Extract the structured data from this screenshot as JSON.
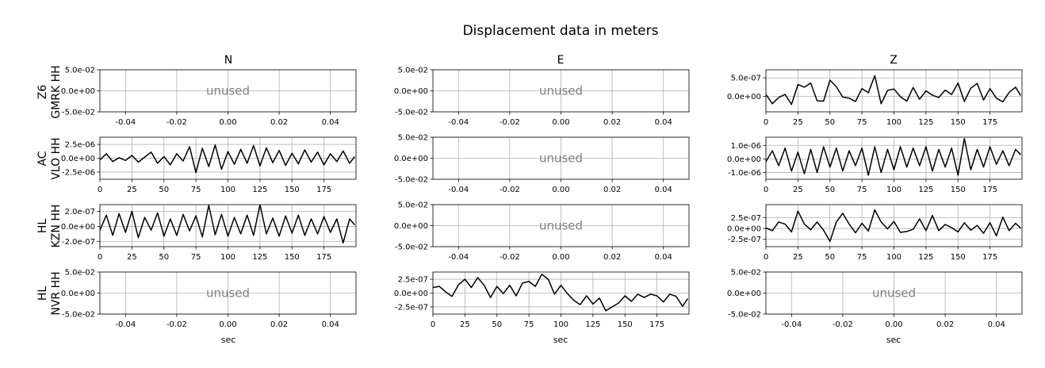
{
  "figure": {
    "title": "Displacement data in meters",
    "columns": [
      "N",
      "E",
      "Z"
    ],
    "xlabel": "sec",
    "unused_label": "unused"
  },
  "chart_data": [
    {
      "row": 0,
      "col": 0,
      "station": "Z6 GMRK HH",
      "component": "N",
      "type": "line",
      "unused": true,
      "xlim": [
        -0.05,
        0.05
      ],
      "xticks": [
        "-0.04",
        "-0.02",
        "0.00",
        "0.02",
        "0.04"
      ],
      "ylim": [
        -0.05,
        0.05
      ],
      "yticks": [
        "5.0e-02",
        "0.0e+00",
        "-5.0e-02"
      ],
      "grid": true
    },
    {
      "row": 0,
      "col": 1,
      "station": "Z6 GMRK HH",
      "component": "E",
      "type": "line",
      "unused": true,
      "xlim": [
        -0.05,
        0.05
      ],
      "xticks": [
        "-0.04",
        "-0.02",
        "0.00",
        "0.02",
        "0.04"
      ],
      "ylim": [
        -0.05,
        0.05
      ],
      "yticks": [
        "5.0e-02",
        "0.0e+00",
        "-5.0e-02"
      ],
      "grid": true
    },
    {
      "row": 0,
      "col": 2,
      "station": "Z6 GMRK HH",
      "component": "Z",
      "type": "line",
      "unused": false,
      "xlim": [
        0,
        200
      ],
      "xticks": [
        "0",
        "25",
        "50",
        "75",
        "100",
        "125",
        "150",
        "175"
      ],
      "ylim": [
        -4.2e-07,
        7.2e-07
      ],
      "yticks": [
        "5.0e-07",
        "0.0e+00"
      ],
      "grid": true,
      "x": [
        0,
        5,
        10,
        15,
        20,
        25,
        30,
        35,
        40,
        45,
        50,
        55,
        60,
        65,
        70,
        75,
        80,
        85,
        90,
        95,
        100,
        105,
        110,
        115,
        120,
        125,
        130,
        135,
        140,
        145,
        150,
        155,
        160,
        165,
        170,
        175,
        180,
        185,
        190,
        195,
        199
      ],
      "y": [
        5e-08,
        -2e-07,
        -3e-08,
        5e-08,
        -2.2e-07,
        3.2e-07,
        2.5e-07,
        3.6e-07,
        -1.2e-07,
        -1.3e-07,
        4.4e-07,
        2.6e-07,
        -2e-08,
        -5e-08,
        -1.4e-07,
        2.1e-07,
        1e-07,
        5.6e-07,
        -2e-07,
        1.6e-07,
        2e-07,
        -1e-08,
        -1.3e-07,
        2.4e-07,
        -8e-08,
        1.5e-07,
        3e-08,
        -3e-08,
        1.7e-07,
        5e-08,
        3.6e-07,
        -1.4e-07,
        2.2e-07,
        3.5e-07,
        -1e-07,
        2.1e-07,
        -5e-08,
        -1.5e-07,
        1.1e-07,
        2.5e-07,
        2e-08
      ]
    },
    {
      "row": 1,
      "col": 0,
      "station": "AC VLO HH",
      "component": "N",
      "type": "line",
      "unused": false,
      "xlim": [
        0,
        200
      ],
      "xticks": [
        "0",
        "25",
        "50",
        "75",
        "100",
        "125",
        "150",
        "175"
      ],
      "ylim": [
        -3.8e-06,
        3.8e-06
      ],
      "yticks": [
        "2.5e-06",
        "0.0e+00",
        "-2.5e-06"
      ],
      "grid": true,
      "x": [
        0,
        5,
        10,
        15,
        20,
        25,
        30,
        35,
        40,
        45,
        50,
        55,
        60,
        65,
        70,
        75,
        80,
        85,
        90,
        95,
        100,
        105,
        110,
        115,
        120,
        125,
        130,
        135,
        140,
        145,
        150,
        155,
        160,
        165,
        170,
        175,
        180,
        185,
        190,
        195,
        199
      ],
      "y": [
        -3e-07,
        8e-07,
        -6e-07,
        1e-07,
        -4e-07,
        5e-07,
        -7e-07,
        2e-07,
        1.1e-06,
        -9e-07,
        3e-07,
        -1.2e-06,
        8e-07,
        -5e-07,
        2.1e-06,
        -2.6e-06,
        1.8e-06,
        -1.5e-06,
        2.4e-06,
        -2e-06,
        1.2e-06,
        -1.1e-06,
        1.6e-06,
        -9e-07,
        2.3e-06,
        -1.4e-06,
        1.9e-06,
        -8e-07,
        1.4e-06,
        -1.3e-06,
        9e-07,
        -1e-06,
        1.5e-06,
        -7e-07,
        1.1e-06,
        -1.2e-06,
        8e-07,
        -6e-07,
        1.3e-06,
        -9e-07,
        3e-07
      ]
    },
    {
      "row": 1,
      "col": 1,
      "station": "AC VLO HH",
      "component": "E",
      "type": "line",
      "unused": true,
      "xlim": [
        -0.05,
        0.05
      ],
      "xticks": [
        "-0.04",
        "-0.02",
        "0.00",
        "0.02",
        "0.04"
      ],
      "ylim": [
        -0.05,
        0.05
      ],
      "yticks": [
        "5.0e-02",
        "0.0e+00",
        "-5.0e-02"
      ],
      "grid": true
    },
    {
      "row": 1,
      "col": 2,
      "station": "AC VLO HH",
      "component": "Z",
      "type": "line",
      "unused": false,
      "xlim": [
        0,
        200
      ],
      "xticks": [
        "0",
        "25",
        "50",
        "75",
        "100",
        "125",
        "150",
        "175"
      ],
      "ylim": [
        -1.5e-06,
        1.6e-06
      ],
      "yticks": [
        "1.0e-06",
        "0.0e+00",
        "-1.0e-06"
      ],
      "grid": true,
      "x": [
        0,
        5,
        10,
        15,
        20,
        25,
        30,
        35,
        40,
        45,
        50,
        55,
        60,
        65,
        70,
        75,
        80,
        85,
        90,
        95,
        100,
        105,
        110,
        115,
        120,
        125,
        130,
        135,
        140,
        145,
        150,
        155,
        160,
        165,
        170,
        175,
        180,
        185,
        190,
        195,
        199
      ],
      "y": [
        -2e-07,
        6e-07,
        -5e-07,
        8e-07,
        -9e-07,
        5e-07,
        -1.1e-06,
        7e-07,
        -1e-06,
        9e-07,
        -6e-07,
        8e-07,
        -9e-07,
        6e-07,
        -5e-07,
        8e-07,
        -1.2e-06,
        9e-07,
        -1e-06,
        7e-07,
        -8e-07,
        9e-07,
        -6e-07,
        8e-07,
        -5e-07,
        9e-07,
        -9e-07,
        7e-07,
        -6e-07,
        8e-07,
        -1.2e-06,
        1.5e-06,
        -8e-07,
        7e-07,
        -6e-07,
        9e-07,
        -4e-07,
        6e-07,
        -5e-07,
        7e-07,
        3e-07
      ]
    },
    {
      "row": 2,
      "col": 0,
      "station": "HL KZN HH",
      "component": "N",
      "type": "line",
      "unused": false,
      "xlim": [
        0,
        200
      ],
      "xticks": [
        "0",
        "25",
        "50",
        "75",
        "100",
        "125",
        "150",
        "175"
      ],
      "ylim": [
        -2.7e-07,
        2.9e-07
      ],
      "yticks": [
        "2.0e-07",
        "0.0e+00",
        "-2.0e-07"
      ],
      "grid": true,
      "x": [
        0,
        5,
        10,
        15,
        20,
        25,
        30,
        35,
        40,
        45,
        50,
        55,
        60,
        65,
        70,
        75,
        80,
        85,
        90,
        95,
        100,
        105,
        110,
        115,
        120,
        125,
        130,
        135,
        140,
        145,
        150,
        155,
        160,
        165,
        170,
        175,
        180,
        185,
        190,
        195,
        199
      ],
      "y": [
        -5e-08,
        1.5e-07,
        -1.2e-07,
        1.7e-07,
        -8e-08,
        2e-07,
        -1.5e-07,
        1.2e-07,
        -5e-08,
        1.8e-07,
        -1.3e-07,
        1e-07,
        -1.2e-07,
        1.6e-07,
        -6e-08,
        1.4e-07,
        -1.4e-07,
        2.8e-07,
        -1.1e-07,
        1.6e-07,
        -1.3e-07,
        1.2e-07,
        -1e-07,
        1.5e-07,
        -1.2e-07,
        2.9e-07,
        -1e-07,
        1.1e-07,
        -1.3e-07,
        1.4e-07,
        -9e-08,
        1.5e-07,
        -1.2e-07,
        1e-07,
        -1e-07,
        1.3e-07,
        -8e-08,
        1e-07,
        -2.2e-07,
        1e-07,
        2e-08
      ]
    },
    {
      "row": 2,
      "col": 1,
      "station": "HL KZN HH",
      "component": "E",
      "type": "line",
      "unused": true,
      "xlim": [
        -0.05,
        0.05
      ],
      "xticks": [
        "-0.04",
        "-0.02",
        "0.00",
        "0.02",
        "0.04"
      ],
      "ylim": [
        -0.05,
        0.05
      ],
      "yticks": [
        "5.0e-02",
        "0.0e+00",
        "-5.0e-02"
      ],
      "grid": true
    },
    {
      "row": 2,
      "col": 2,
      "station": "HL KZN HH",
      "component": "Z",
      "type": "line",
      "unused": false,
      "xlim": [
        0,
        200
      ],
      "xticks": [
        "0",
        "25",
        "50",
        "75",
        "100",
        "125",
        "150",
        "175"
      ],
      "ylim": [
        -4.2e-07,
        5.5e-07
      ],
      "yticks": [
        "2.5e-07",
        "0.0e+00",
        "-2.5e-07"
      ],
      "grid": true,
      "x": [
        0,
        5,
        10,
        15,
        20,
        25,
        30,
        35,
        40,
        45,
        50,
        55,
        60,
        65,
        70,
        75,
        80,
        85,
        90,
        95,
        100,
        105,
        110,
        115,
        120,
        125,
        130,
        135,
        140,
        145,
        150,
        155,
        160,
        165,
        170,
        175,
        180,
        185,
        190,
        195,
        199
      ],
      "y": [
        1e-08,
        -5e-08,
        1.5e-07,
        1e-07,
        -8e-08,
        4e-07,
        1e-07,
        -3e-08,
        1.5e-07,
        -4e-08,
        -3e-07,
        1.5e-07,
        3.5e-07,
        1e-07,
        -1e-07,
        1.2e-07,
        -6e-08,
        4.3e-07,
        1.5e-07,
        -1e-08,
        1.6e-07,
        -9e-08,
        -7e-08,
        -2e-08,
        2.2e-07,
        -5e-08,
        3e-07,
        -5e-08,
        9e-08,
        2e-08,
        -8e-08,
        1.3e-07,
        -4e-08,
        7e-08,
        -1.1e-07,
        1.3e-07,
        -1.7e-07,
        2.6e-07,
        -5e-08,
        1.2e-07,
        5e-09
      ]
    },
    {
      "row": 3,
      "col": 0,
      "station": "HL NVR HH",
      "component": "N",
      "type": "line",
      "unused": true,
      "xlim": [
        -0.05,
        0.05
      ],
      "xticks": [
        "-0.04",
        "-0.02",
        "0.00",
        "0.02",
        "0.04"
      ],
      "ylim": [
        -0.05,
        0.05
      ],
      "yticks": [
        "5.0e-02",
        "0.0e+00",
        "-5.0e-02"
      ],
      "grid": true
    },
    {
      "row": 3,
      "col": 1,
      "station": "HL NVR HH",
      "component": "E",
      "type": "line",
      "unused": false,
      "xlim": [
        0,
        200
      ],
      "xticks": [
        "0",
        "25",
        "50",
        "75",
        "100",
        "125",
        "150",
        "175"
      ],
      "ylim": [
        -3.8e-07,
        3.8e-07
      ],
      "yticks": [
        "2.5e-07",
        "0.0e+00",
        "-2.5e-07"
      ],
      "grid": true,
      "x": [
        0,
        5,
        10,
        15,
        20,
        25,
        30,
        35,
        40,
        45,
        50,
        55,
        60,
        65,
        70,
        75,
        80,
        85,
        90,
        95,
        100,
        105,
        110,
        115,
        120,
        125,
        130,
        135,
        140,
        145,
        150,
        155,
        160,
        165,
        170,
        175,
        180,
        185,
        190,
        195,
        199
      ],
      "y": [
        1e-07,
        1.2e-07,
        2e-08,
        -6e-08,
        1.5e-07,
        2.5e-07,
        1e-07,
        2.8e-07,
        1.4e-07,
        -8e-08,
        1.2e-07,
        -1e-08,
        1.4e-07,
        -5e-08,
        1.8e-07,
        2.1e-07,
        1.2e-07,
        3.4e-07,
        2.5e-07,
        -2e-08,
        1.4e-07,
        -1e-08,
        -1.3e-07,
        -2.1e-07,
        -5e-08,
        -2e-07,
        -9e-08,
        -3.2e-07,
        -2.5e-07,
        -1.8e-07,
        -5e-08,
        -1.5e-07,
        -2e-08,
        -8e-08,
        -2e-08,
        -5e-08,
        -1.6e-07,
        -2e-08,
        -6e-08,
        -2.4e-07,
        -1e-07
      ]
    },
    {
      "row": 3,
      "col": 2,
      "station": "HL NVR HH",
      "component": "Z",
      "type": "line",
      "unused": true,
      "xlim": [
        -0.05,
        0.05
      ],
      "xticks": [
        "-0.04",
        "-0.02",
        "0.00",
        "0.02",
        "0.04"
      ],
      "ylim": [
        -0.05,
        0.05
      ],
      "yticks": [
        "5.0e-02",
        "0.0e+00",
        "-5.0e-02"
      ],
      "grid": true
    }
  ],
  "row_labels": [
    {
      "line1": "Z6",
      "line2": "GMRK HH"
    },
    {
      "line1": "AC",
      "line2": "VLO HH"
    },
    {
      "line1": "HL",
      "line2": "KZN HH"
    },
    {
      "line1": "HL",
      "line2": "NVR HH"
    }
  ],
  "colors": {
    "trace": "#000000",
    "grid": "#b0b0b0",
    "unused_text": "#808080",
    "axes": "#000000"
  }
}
